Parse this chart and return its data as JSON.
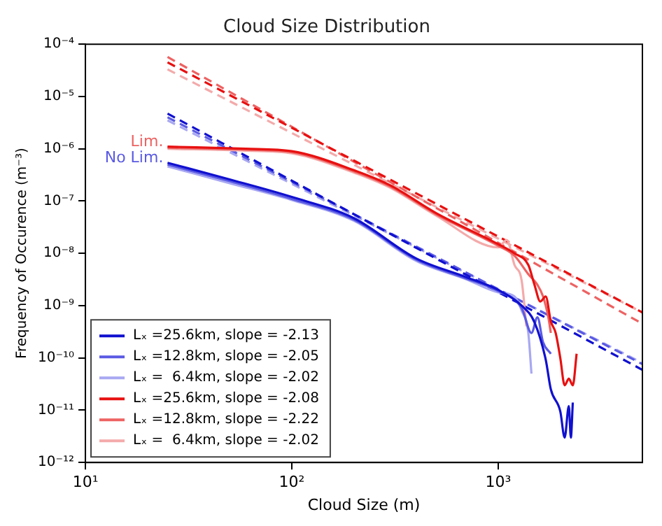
{
  "chart_data": {
    "type": "line",
    "title": "Cloud Size Distribution",
    "xlabel": "Cloud Size (m)",
    "ylabel": "Frequency of Occurence (m⁻³)",
    "log": "xy",
    "grid": false,
    "legend": "bottom left",
    "marker": "none",
    "xlim": [
      10,
      5000
    ],
    "xticks": [
      {
        "value": 10,
        "label": "10¹"
      },
      {
        "value": 100,
        "label": "10²"
      },
      {
        "value": 1000,
        "label": "10³"
      }
    ],
    "ylim": [
      1e-12,
      0.0001
    ],
    "yticks": [
      {
        "value": 1e-12,
        "label": "10⁻¹²"
      },
      {
        "value": 1e-11,
        "label": "10⁻¹¹"
      },
      {
        "value": 1e-10,
        "label": "10⁻¹⁰"
      },
      {
        "value": 1e-09,
        "label": "10⁻⁹"
      },
      {
        "value": 1e-08,
        "label": "10⁻⁸"
      },
      {
        "value": 1e-07,
        "label": "10⁻⁷"
      },
      {
        "value": 1e-06,
        "label": "10⁻⁶"
      },
      {
        "value": 1e-05,
        "label": "10⁻⁵"
      },
      {
        "value": 0.0001,
        "label": "10⁻⁴"
      }
    ],
    "annotations": [
      "Lim.",
      "No Lim."
    ],
    "series": [
      {
        "name": "Lₓ =25.6km, slope = -2.13",
        "color": "#1010d0",
        "line_style": "solid",
        "x": [
          25,
          50,
          100,
          200,
          400,
          700,
          1000,
          1300,
          1500,
          1700,
          1800,
          2000,
          2100,
          2200,
          2250,
          2300
        ],
        "values": [
          5.4e-07,
          2.6e-07,
          1.2e-07,
          4.7e-08,
          8e-09,
          3.5e-09,
          2e-09,
          1e-09,
          4.8e-10,
          9.3e-11,
          2.5e-11,
          9.5e-12,
          3e-12,
          1.2e-11,
          3e-12,
          1.4e-11
        ]
      },
      {
        "name": "Lₓ =12.8km, slope = -2.05",
        "color": "#5a5ae4",
        "line_style": "solid",
        "x": [
          25,
          50,
          100,
          200,
          400,
          700,
          1000,
          1300,
          1450,
          1550,
          1650,
          1800
        ],
        "values": [
          5e-07,
          2.4e-07,
          1.1e-07,
          4.4e-08,
          7.6e-09,
          3.3e-09,
          1.9e-09,
          9e-10,
          3e-10,
          6e-10,
          2e-10,
          1.2e-10
        ]
      },
      {
        "name": "Lₓ =  6.4km, slope = -2.02",
        "color": "#a8a8f2",
        "line_style": "solid",
        "x": [
          25,
          50,
          100,
          200,
          400,
          700,
          1000,
          1200,
          1300,
          1400,
          1450
        ],
        "values": [
          4.6e-07,
          2.2e-07,
          1.05e-07,
          4.2e-08,
          7.2e-09,
          3.2e-09,
          1.8e-09,
          1.5e-09,
          8e-10,
          3e-10,
          5e-11
        ]
      },
      {
        "name": "Lₓ =25.6km, slope = -2.08",
        "color": "#e81010",
        "line_style": "solid",
        "x": [
          25,
          60,
          100,
          200,
          300,
          500,
          1000,
          1200,
          1400,
          1500,
          1600,
          1700,
          1800,
          1900,
          2000,
          2100,
          2200,
          2300,
          2400
        ],
        "values": [
          1.1e-06,
          1e-06,
          9e-07,
          3.9e-07,
          2e-07,
          5.9e-08,
          1.5e-08,
          1e-08,
          6e-09,
          2.5e-09,
          1.2e-09,
          1.5e-09,
          5e-10,
          3e-10,
          1e-10,
          3e-11,
          4e-11,
          3e-11,
          1.2e-10
        ]
      },
      {
        "name": "Lₓ =12.8km, slope = -2.22",
        "color": "#ee6262",
        "line_style": "solid",
        "x": [
          25,
          60,
          100,
          200,
          300,
          500,
          1000,
          1200,
          1400,
          1550,
          1650,
          1750,
          1800
        ],
        "values": [
          1.05e-06,
          9.6e-07,
          8.6e-07,
          3.7e-07,
          1.9e-07,
          5.6e-08,
          1.4e-08,
          9e-09,
          4e-09,
          2.5e-09,
          1.5e-09,
          6e-10,
          3e-10
        ]
      },
      {
        "name": "Lₓ =  6.4km, slope = -2.02",
        "color": "#f4aaaa",
        "line_style": "solid",
        "x": [
          25,
          60,
          100,
          200,
          300,
          500,
          1000,
          1100,
          1200,
          1300,
          1370
        ],
        "values": [
          1e-06,
          9.2e-07,
          8.2e-07,
          3.5e-07,
          1.8e-07,
          5.3e-08,
          1.3e-08,
          1.8e-08,
          6e-09,
          3e-09,
          4e-10
        ]
      },
      {
        "color": "#1010d0",
        "line_style": "dashed",
        "x": [
          25,
          5000
        ],
        "values": [
          4.7e-06,
          5.9e-11
        ]
      },
      {
        "color": "#5a5ae4",
        "line_style": "dashed",
        "x": [
          25,
          5000
        ],
        "values": [
          4e-06,
          7.6e-11
        ]
      },
      {
        "color": "#a8a8f2",
        "line_style": "dashed",
        "x": [
          25,
          5000
        ],
        "values": [
          3.5e-06,
          8e-11
        ]
      },
      {
        "color": "#e81010",
        "line_style": "dashed",
        "x": [
          25,
          5000
        ],
        "values": [
          4.5e-05,
          7.4e-10
        ]
      },
      {
        "color": "#ee6262",
        "line_style": "dashed",
        "x": [
          25,
          5000
        ],
        "values": [
          5.7e-05,
          4.5e-10
        ]
      },
      {
        "color": "#f4aaaa",
        "line_style": "dashed",
        "x": [
          25,
          5000
        ],
        "values": [
          3.3e-05,
          7.4e-10
        ]
      }
    ]
  }
}
